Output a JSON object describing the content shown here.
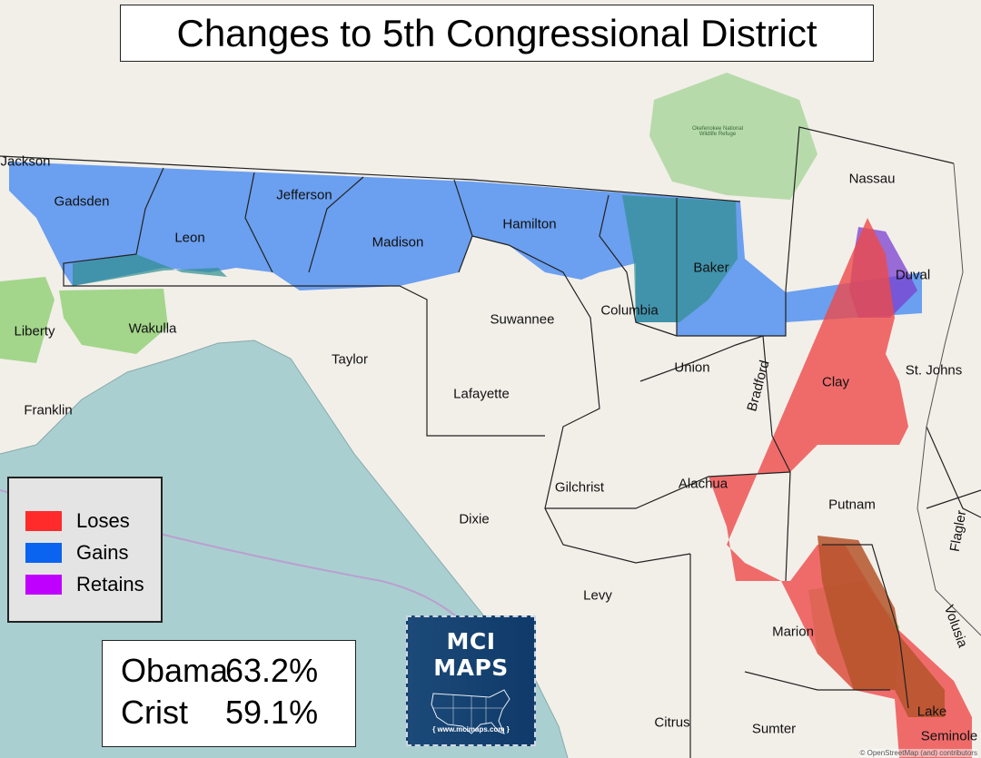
{
  "title": "Changes to 5th Congressional District",
  "legend": [
    {
      "label": "Loses",
      "color": "#ff2a2a"
    },
    {
      "label": "Gains",
      "color": "#0a64f0"
    },
    {
      "label": "Retains",
      "color": "#c000ff"
    }
  ],
  "stats": [
    {
      "name": "Obama",
      "value": "63.2%"
    },
    {
      "name": "Crist",
      "value": "59.1%"
    }
  ],
  "logo": {
    "title": "MCI MAPS",
    "url": "{ www.mcimaps.com }"
  },
  "attribution": "© OpenStreetMap (and) contributors",
  "counties": [
    "Jackson",
    "Gadsden",
    "Leon",
    "Jefferson",
    "Madison",
    "Hamilton",
    "Baker",
    "Nassau",
    "Duval",
    "Liberty",
    "Wakulla",
    "Taylor",
    "Suwannee",
    "Columbia",
    "Union",
    "Bradford",
    "Clay",
    "St. Johns",
    "Franklin",
    "Lafayette",
    "Alachua",
    "Putnam",
    "Flagler",
    "Gilchrist",
    "Dixie",
    "Levy",
    "Marion",
    "Volusia",
    "Lake",
    "Citrus",
    "Sumter",
    "Seminole",
    "Okefenokee National Wildlife Refuge"
  ]
}
